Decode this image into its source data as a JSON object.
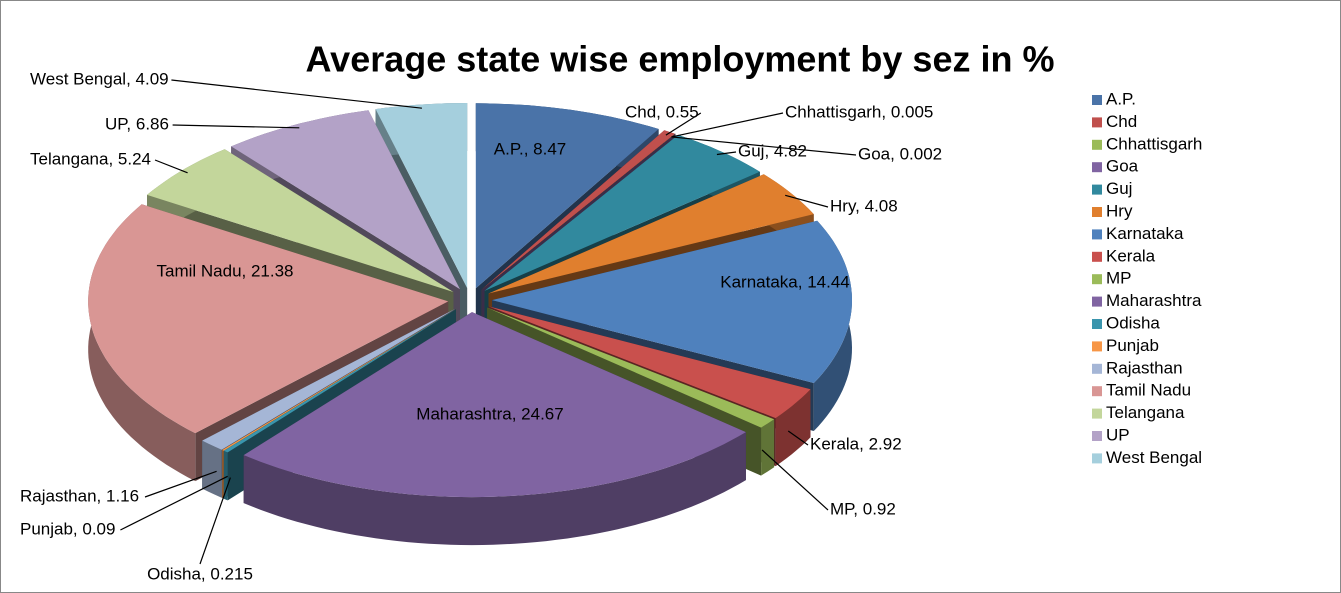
{
  "chart_data": {
    "type": "pie3d",
    "title": "Average state wise employment by sez in %",
    "categories": [
      "A.P.",
      "Chd",
      "Chhattisgarh",
      "Goa",
      "Guj",
      "Hry",
      "Karnataka",
      "Kerala",
      "MP",
      "Maharashtra",
      "Odisha",
      "Punjab",
      "Rajasthan",
      "Tamil Nadu",
      "Telangana",
      "UP",
      "West Bengal"
    ],
    "values": [
      8.47,
      0.55,
      0.005,
      0.002,
      4.82,
      4.08,
      14.44,
      2.92,
      0.92,
      24.67,
      0.215,
      0.09,
      1.16,
      21.38,
      5.24,
      6.86,
      4.09
    ],
    "value_labels": [
      "A.P., 8.47",
      "Chd, 0.55",
      "Chhattisgarh, 0.005",
      "Goa, 0.002",
      "Guj, 4.82",
      "Hry, 4.08",
      "Karnataka, 14.44",
      "Kerala, 2.92",
      "MP, 0.92",
      "Maharashtra, 24.67",
      "Odisha, 0.215",
      "Punjab, 0.09",
      "Rajasthan, 1.16",
      "Tamil Nadu, 21.38",
      "Telangana, 5.24",
      "UP, 6.86",
      "West Bengal, 4.09"
    ],
    "colors": [
      "#4a73a8",
      "#c0504d",
      "#9bbb59",
      "#8064a2",
      "#31899e",
      "#e07f2e",
      "#4f81bd",
      "#c9504d",
      "#9bbb59",
      "#8064a2",
      "#3a95ad",
      "#f79646",
      "#a5b6d6",
      "#d99694",
      "#c3d69b",
      "#b3a2c7",
      "#a5cfdd"
    ],
    "legend": "right"
  }
}
